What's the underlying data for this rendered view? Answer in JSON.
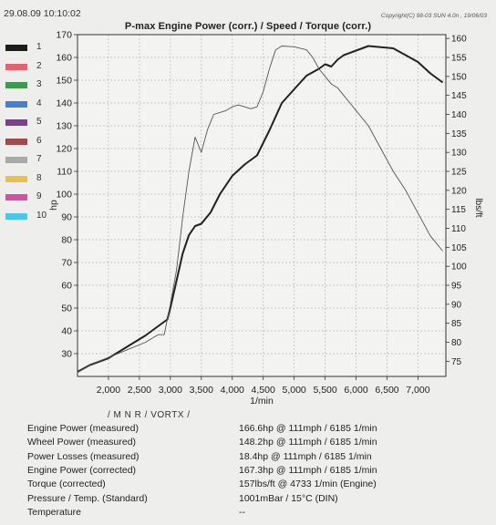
{
  "header": {
    "datetime": "29.08.09 10:10:02",
    "copyright": "Copyright(C) 98-03 SUN 4.0n , 19/06/03"
  },
  "chart_data": [
    {
      "type": "line",
      "title": "P-max Engine Power  (corr.) / Speed / Torque (corr.)",
      "xlabel": "1/min",
      "ylabel_left": "hp",
      "ylabel_right": "lbs/ft",
      "xlim": [
        1500,
        7450
      ],
      "x_ticks": [
        "2,000",
        "2,500",
        "3,000",
        "3,500",
        "4,000",
        "4,500",
        "5,000",
        "5,500",
        "6,000",
        "6,500",
        "7,000"
      ],
      "x_tick_values": [
        2000,
        2500,
        3000,
        3500,
        4000,
        4500,
        5000,
        5500,
        6000,
        6500,
        7000
      ],
      "ylim_left": [
        20,
        170
      ],
      "y_ticks_left": [
        "30",
        "40",
        "50",
        "60",
        "70",
        "80",
        "90",
        "100",
        "110",
        "120",
        "130",
        "140",
        "150",
        "160",
        "170"
      ],
      "ylim_right": [
        71,
        161
      ],
      "y_ticks_right": [
        "75",
        "80",
        "85",
        "90",
        "95",
        "100",
        "105",
        "110",
        "115",
        "120",
        "125",
        "130",
        "135",
        "140",
        "145",
        "150",
        "155",
        "160"
      ],
      "grid": true,
      "series": [
        {
          "axis": "left",
          "style": "thick",
          "color": "#222222",
          "x": [
            1500,
            1700,
            2000,
            2300,
            2600,
            2800,
            2950,
            3000,
            3100,
            3200,
            3300,
            3400,
            3500,
            3650,
            3800,
            4000,
            4200,
            4400,
            4600,
            4800,
            5000,
            5200,
            5400,
            5500,
            5600,
            5700,
            5800,
            6000,
            6200,
            6400,
            6600,
            6800,
            7000,
            7200,
            7400
          ],
          "y": [
            22,
            25,
            28,
            33,
            38,
            42,
            45,
            50,
            62,
            74,
            82,
            86,
            87,
            92,
            100,
            108,
            113,
            117,
            128,
            140,
            146,
            152,
            155,
            157,
            156,
            159,
            161,
            163,
            165,
            164.5,
            164,
            161,
            158,
            153,
            149
          ]
        },
        {
          "axis": "right",
          "style": "thin",
          "color": "#555555",
          "x": [
            1500,
            1700,
            2000,
            2300,
            2600,
            2800,
            2900,
            3000,
            3100,
            3200,
            3300,
            3400,
            3500,
            3600,
            3700,
            3800,
            3900,
            4000,
            4100,
            4200,
            4300,
            4400,
            4500,
            4600,
            4700,
            4800,
            5000,
            5200,
            5300,
            5400,
            5500,
            5600,
            5700,
            5800,
            5900,
            6000,
            6200,
            6400,
            6600,
            6800,
            7000,
            7200,
            7400
          ],
          "y": [
            72,
            74,
            76,
            78,
            80,
            82,
            82,
            90,
            99,
            113,
            125,
            134,
            130,
            136,
            140,
            140.5,
            141,
            142,
            142.5,
            142,
            141.5,
            142,
            146,
            152,
            157,
            158,
            157.8,
            157,
            155,
            152,
            150,
            148,
            147,
            145,
            143,
            141,
            137,
            131,
            125,
            120,
            114,
            108,
            104
          ]
        }
      ]
    }
  ],
  "legend": [
    {
      "num": "1",
      "color": "#1c1c1c"
    },
    {
      "num": "2",
      "color": "#e2626d"
    },
    {
      "num": "3",
      "color": "#3f9a4e"
    },
    {
      "num": "4",
      "color": "#4680cc"
    },
    {
      "num": "5",
      "color": "#7e3f92"
    },
    {
      "num": "6",
      "color": "#a04a4e"
    },
    {
      "num": "7",
      "color": "#a9a9aa"
    },
    {
      "num": "8",
      "color": "#e6c24c"
    },
    {
      "num": "9",
      "color": "#d64fa1"
    },
    {
      "num": "10",
      "color": "#47c8e4"
    }
  ],
  "vehicle": "/ M N R / VORTX /",
  "results": [
    {
      "label": "Engine Power (measured)",
      "value": "166.6hp @ 111mph / 6185 1/min"
    },
    {
      "label": "Wheel Power (measured)",
      "value": "148.2hp @ 111mph / 6185 1/min"
    },
    {
      "label": "Power Losses (measured)",
      "value": "18.4hp @ 111mph / 6185 1/min"
    },
    {
      "label": "Engine Power (corrected)",
      "value": "167.3hp @ 111mph / 6185 1/min"
    },
    {
      "label": "Torque (corrected)",
      "value": "157lbs/ft @ 4733 1/min (Engine)"
    },
    {
      "label": "Pressure / Temp. (Standard)",
      "value": "1001mBar / 15°C (DIN)"
    },
    {
      "label": "Temperature",
      "value": "--"
    }
  ]
}
